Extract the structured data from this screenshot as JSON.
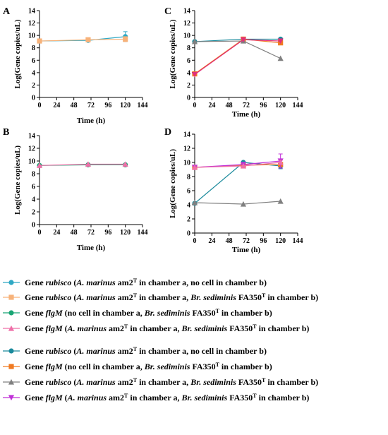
{
  "chart_data": [
    {
      "panel": "A",
      "type": "line",
      "xlabel": "Time (h)",
      "ylabel": "Log(Gene copies/uL)",
      "xlim": [
        0,
        144
      ],
      "ylim": [
        0,
        14
      ],
      "xticks": [
        0,
        24,
        48,
        72,
        96,
        120,
        144
      ],
      "yticks": [
        0,
        2,
        4,
        6,
        8,
        10,
        12,
        14
      ],
      "series": [
        {
          "key": "rubisco_a_only",
          "color": "#2ea8c4",
          "marker": "circle",
          "x": [
            0,
            68,
            120
          ],
          "y": [
            9.1,
            9.2,
            9.8
          ],
          "err": [
            0.1,
            0.15,
            0.8
          ]
        },
        {
          "key": "rubisco_a_b",
          "color": "#f7b27a",
          "marker": "square",
          "x": [
            0,
            68,
            120
          ],
          "y": [
            9.1,
            9.3,
            9.4
          ],
          "err": [
            0.1,
            0.1,
            0.4
          ]
        }
      ]
    },
    {
      "panel": "B",
      "type": "line",
      "xlabel": "Time (h)",
      "ylabel": "Log(Gene copies/uL)",
      "xlim": [
        0,
        144
      ],
      "ylim": [
        0,
        14
      ],
      "xticks": [
        0,
        24,
        48,
        72,
        96,
        120,
        144
      ],
      "yticks": [
        0,
        2,
        4,
        6,
        8,
        10,
        12,
        14
      ],
      "series": [
        {
          "key": "flgm_b_only",
          "color": "#18a574",
          "marker": "circle",
          "x": [
            0,
            68,
            120
          ],
          "y": [
            9.3,
            9.4,
            9.4
          ],
          "err": [
            0.05,
            0.05,
            0.05
          ]
        },
        {
          "key": "flgm_a_b_pink",
          "color": "#ef6fa8",
          "marker": "triangle",
          "x": [
            0,
            68,
            120
          ],
          "y": [
            9.3,
            9.5,
            9.5
          ],
          "err": [
            0.05,
            0.05,
            0.05
          ]
        }
      ]
    },
    {
      "panel": "C",
      "type": "line",
      "xlabel": "Time (h)",
      "ylabel": "Log(Gene copies/uL)",
      "xlim": [
        0,
        144
      ],
      "ylim": [
        0,
        14
      ],
      "xticks": [
        0,
        24,
        48,
        72,
        96,
        120,
        144
      ],
      "yticks": [
        0,
        2,
        4,
        6,
        8,
        10,
        12,
        14
      ],
      "series": [
        {
          "key": "rubisco_a_only_2",
          "color": "#1a8a9c",
          "marker": "circle",
          "x": [
            0,
            68,
            120
          ],
          "y": [
            9.0,
            9.4,
            9.4
          ],
          "err": [
            0.1,
            0.1,
            0.1
          ]
        },
        {
          "key": "flgm_b_only_2",
          "color": "#f07a22",
          "marker": "square",
          "x": [
            0,
            68,
            120
          ],
          "y": [
            3.8,
            9.4,
            8.8
          ],
          "err": [
            0.1,
            0.2,
            0.2
          ]
        },
        {
          "key": "rubisco_a_b_2",
          "color": "#808080",
          "marker": "triangle",
          "x": [
            0,
            68,
            120
          ],
          "y": [
            9.0,
            9.1,
            6.3
          ],
          "err": [
            0.1,
            0.1,
            0.1
          ]
        },
        {
          "key": "flgm_a_b_2",
          "color": "#e0307a",
          "marker": "triangle-down",
          "x": [
            0,
            68,
            120
          ],
          "y": [
            3.7,
            9.3,
            9.1
          ],
          "err": [
            0.1,
            0.1,
            0.1
          ]
        }
      ]
    },
    {
      "panel": "D",
      "type": "line",
      "xlabel": "Time (h)",
      "ylabel": "Log(Gene copies/uL)",
      "xlim": [
        0,
        144
      ],
      "ylim": [
        0,
        14
      ],
      "xticks": [
        0,
        24,
        48,
        72,
        96,
        120,
        144
      ],
      "yticks": [
        0,
        2,
        4,
        6,
        8,
        10,
        12,
        14
      ],
      "series": [
        {
          "key": "rubisco_a_only_2",
          "color": "#1a8a9c",
          "marker": "circle",
          "x": [
            0,
            68,
            120
          ],
          "y": [
            4.2,
            10.0,
            9.5
          ],
          "err": [
            0.1,
            0.1,
            0.4
          ]
        },
        {
          "key": "flgm_b_only_2",
          "color": "#f07a22",
          "marker": "square",
          "x": [
            0,
            68,
            120
          ],
          "y": [
            9.3,
            9.6,
            9.7
          ],
          "err": [
            0.1,
            0.1,
            0.1
          ]
        },
        {
          "key": "rubisco_a_b_2",
          "color": "#808080",
          "marker": "triangle",
          "x": [
            0,
            68,
            120
          ],
          "y": [
            4.3,
            4.1,
            4.5
          ],
          "err": [
            0.1,
            0.1,
            0.1
          ]
        },
        {
          "key": "flgm_a_b_2",
          "color": "#c030d8",
          "marker": "triangle-down",
          "x": [
            0,
            68,
            120
          ],
          "y": [
            9.3,
            9.7,
            10.2
          ],
          "err": [
            0.1,
            0.2,
            1.0
          ]
        },
        {
          "key": "flgm_a_b_pink_d",
          "color": "#ef6fa8",
          "marker": "triangle",
          "x": [
            0,
            68,
            120
          ],
          "y": [
            9.3,
            9.5,
            10.0
          ],
          "err": [
            0.1,
            0.1,
            0.3
          ]
        }
      ]
    }
  ],
  "legend": [
    {
      "color": "#2ea8c4",
      "marker": "circle",
      "gene": "Gene ",
      "gene_italic": "rubisco",
      "p1": " (",
      "p2": "A. marinus",
      "p3": " am2",
      "p4": "T",
      "p5": " in chamber a, no cell in chamber b)",
      "p6": "",
      "p7": "",
      "p8": ""
    },
    {
      "color": "#f7b27a",
      "marker": "square",
      "gene": "Gene ",
      "gene_italic": "rubisco",
      "p1": " (",
      "p2": "A. marinus",
      "p3": " am2",
      "p4": "T",
      "p5": " in chamber a, ",
      "p6": "Br. sediminis",
      "p7": " FA350",
      "p8": "T",
      "p9": " in chamber b)"
    },
    {
      "color": "#18a574",
      "marker": "circle",
      "gene": "Gene ",
      "gene_italic": "flgM",
      "p1": " (no cell in chamber a, ",
      "p2": "Br. sediminis",
      "p3": " FA350",
      "p4": "T",
      "p5": " in chamber b)",
      "p6": "",
      "p7": "",
      "p8": ""
    },
    {
      "color": "#ef6fa8",
      "marker": "triangle",
      "gene": "Gene ",
      "gene_italic": "flgM",
      "p1": " (",
      "p2": "A. marinus",
      "p3": " am2",
      "p4": "T",
      "p5": " in chamber a, ",
      "p6": "Br. sediminis",
      "p7": " FA350",
      "p8": "T",
      "p9": " in chamber b)"
    },
    {
      "color": "#1a8a9c",
      "marker": "circle",
      "gene": "Gene ",
      "gene_italic": "rubisco",
      "p1": " (",
      "p2": "A. marinus",
      "p3": " am2",
      "p4": "T",
      "p5": " in chamber a, no cell in chamber b)",
      "p6": "",
      "p7": "",
      "p8": ""
    },
    {
      "color": "#f07a22",
      "marker": "square",
      "gene": "Gene ",
      "gene_italic": "flgM",
      "p1": " (no cell in chamber a, ",
      "p2": "Br. sediminis",
      "p3": " FA350",
      "p4": "T",
      "p5": " in chamber b)",
      "p6": "",
      "p7": "",
      "p8": ""
    },
    {
      "color": "#808080",
      "marker": "triangle",
      "gene": "Gene ",
      "gene_italic": "rubisco",
      "p1": " (",
      "p2": "A. marinus",
      "p3": " am2",
      "p4": "T",
      "p5": " in chamber a, ",
      "p6": "Br. sediminis",
      "p7": " FA350",
      "p8": "T",
      "p9": " in chamber b)"
    },
    {
      "color": "#c030d8",
      "marker": "triangle-down",
      "gene": "Gene ",
      "gene_italic": "flgM",
      "p1": " (",
      "p2": "A. marinus",
      "p3": " am2",
      "p4": "T",
      "p5": " in chamber a, ",
      "p6": "Br. sediminis",
      "p7": " FA350",
      "p8": "T",
      "p9": " in chamber b)"
    }
  ]
}
